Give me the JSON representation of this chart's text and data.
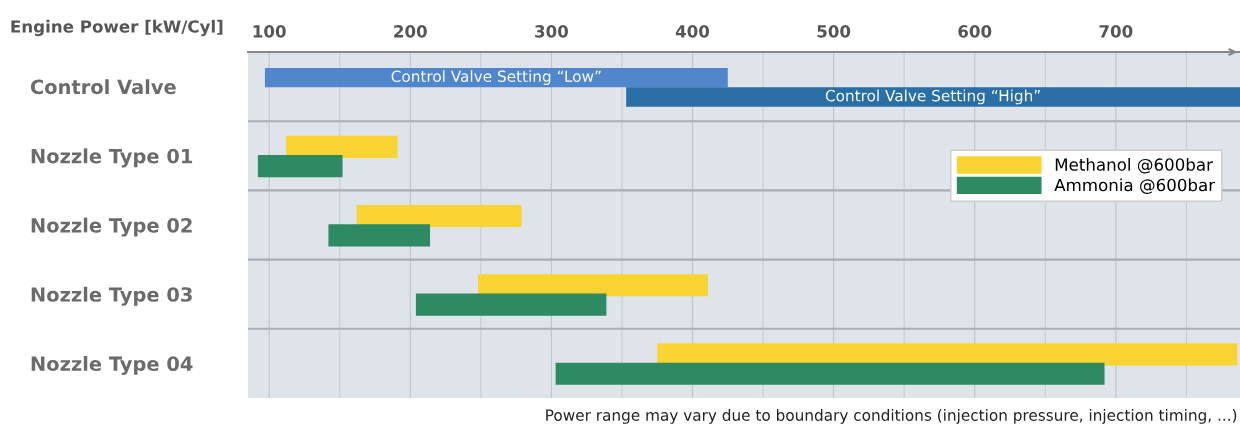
{
  "chart_data": {
    "type": "bar",
    "orientation": "horizontal",
    "xlabel": "Engine Power [kW/Cyl]",
    "categories": [
      "Control Valve",
      "Nozzle Type 01",
      "Nozzle Type 02",
      "Nozzle Type 03",
      "Nozzle Type 04"
    ],
    "series": [
      {
        "color": "#4f86cc",
        "base": [
          97,
          null,
          null,
          null,
          null
        ],
        "values": [
          328,
          null,
          null,
          null,
          null
        ],
        "value_labels": [
          "Control Valve Setting “Low”",
          null,
          null,
          null,
          null
        ]
      },
      {
        "color": "#2a6ea6",
        "base": [
          353,
          null,
          null,
          null,
          null
        ],
        "values": [
          435,
          null,
          null,
          null,
          null
        ],
        "value_labels": [
          "Control Valve Setting “High”",
          null,
          null,
          null,
          null
        ]
      },
      {
        "name": "Methanol @600bar",
        "color": "#f7d431",
        "base": [
          null,
          112,
          162,
          248,
          375
        ],
        "values": [
          null,
          79,
          117,
          163,
          411
        ]
      },
      {
        "name": "Ammonia @600bar",
        "color": "#2e8a62",
        "base": [
          null,
          92,
          142,
          204,
          303
        ],
        "values": [
          null,
          60,
          72,
          135,
          389
        ]
      }
    ],
    "xlim": [
      85,
      788
    ],
    "xticks": [
      100,
      {
        "value": 150,
        "label": null
      },
      200,
      {
        "value": 250,
        "label": null
      },
      300,
      {
        "value": 350,
        "label": null
      },
      400,
      {
        "value": 450,
        "label": null
      },
      500,
      {
        "value": 550,
        "label": null
      },
      600,
      {
        "value": 650,
        "label": null
      },
      700,
      {
        "value": 750,
        "label": null
      }
    ],
    "grid": true,
    "legend": "top right",
    "annotations": [
      "Power range may vary due to boundary conditions (injection pressure, injection timing, ...)"
    ]
  }
}
